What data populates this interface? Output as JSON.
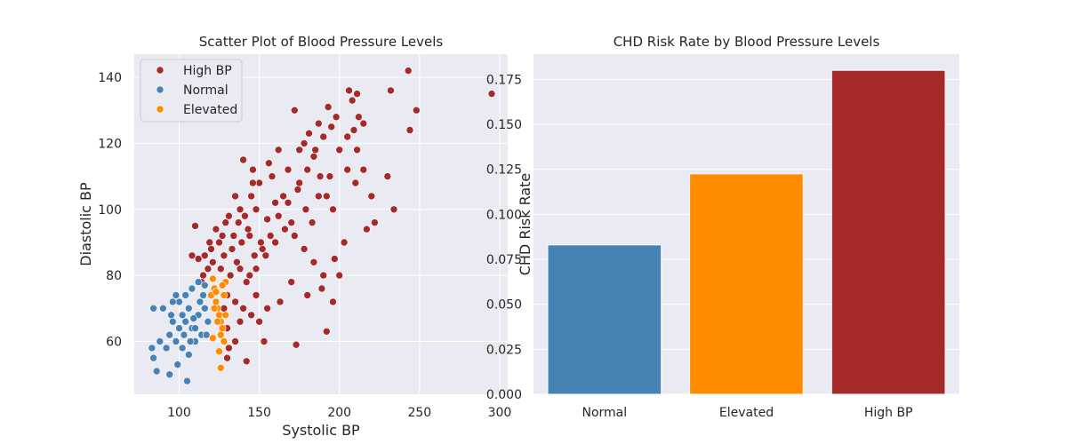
{
  "chart_data": [
    {
      "type": "scatter",
      "title": "Scatter Plot of Blood Pressure Levels",
      "xlabel": "Systolic BP",
      "ylabel": "Diastolic BP",
      "xlim": [
        72,
        305
      ],
      "ylim": [
        44,
        147
      ],
      "xticks": [
        100,
        150,
        200,
        250,
        300
      ],
      "yticks": [
        60,
        80,
        100,
        120,
        140
      ],
      "grid": true,
      "legend_position": "top-left",
      "series": [
        {
          "name": "High BP",
          "color": "#a52a2a",
          "points": [
            [
              143,
              94
            ],
            [
              148,
              100
            ],
            [
              155,
              97
            ],
            [
              139,
              90
            ],
            [
              145,
              104
            ],
            [
              152,
              88
            ],
            [
              160,
              102
            ],
            [
              136,
              84
            ],
            [
              132,
              80
            ],
            [
              128,
              86
            ],
            [
              125,
              90
            ],
            [
              121,
              84
            ],
            [
              118,
              82
            ],
            [
              116,
              86
            ],
            [
              120,
              88
            ],
            [
              134,
              92
            ],
            [
              150,
              108
            ],
            [
              158,
              110
            ],
            [
              165,
              104
            ],
            [
              170,
              96
            ],
            [
              175,
              108
            ],
            [
              180,
              112
            ],
            [
              185,
              118
            ],
            [
              190,
              122
            ],
            [
              195,
              125
            ],
            [
              200,
              118
            ],
            [
              205,
              112
            ],
            [
              210,
              108
            ],
            [
              172,
              130
            ],
            [
              178,
              120
            ],
            [
              184,
              116
            ],
            [
              188,
              110
            ],
            [
              192,
              104
            ],
            [
              196,
              100
            ],
            [
              168,
              112
            ],
            [
              162,
              118
            ],
            [
              156,
              114
            ],
            [
              146,
              108
            ],
            [
              141,
              98
            ],
            [
              137,
              96
            ],
            [
              130,
              74
            ],
            [
              135,
              72
            ],
            [
              140,
              70
            ],
            [
              145,
              68
            ],
            [
              150,
              66
            ],
            [
              130,
              64
            ],
            [
              138,
              66
            ],
            [
              142,
              78
            ],
            [
              148,
              82
            ],
            [
              154,
              86
            ],
            [
              160,
              90
            ],
            [
              166,
              94
            ],
            [
              172,
              92
            ],
            [
              178,
              88
            ],
            [
              184,
              84
            ],
            [
              190,
              80
            ],
            [
              206,
              136
            ],
            [
              208,
              133
            ],
            [
              211,
              135
            ],
            [
              212,
              128
            ],
            [
              215,
              126
            ],
            [
              209,
              124
            ],
            [
              243,
              142
            ],
            [
              248,
              130
            ],
            [
              232,
              136
            ],
            [
              230,
              110
            ],
            [
              234,
              100
            ],
            [
              244,
              124
            ],
            [
              295,
              135
            ],
            [
              220,
              104
            ],
            [
              222,
              96
            ],
            [
              217,
              94
            ],
            [
              215,
              112
            ],
            [
              211,
              118
            ],
            [
              205,
              122
            ],
            [
              198,
              128
            ],
            [
              193,
              131
            ],
            [
              187,
              126
            ],
            [
              181,
              123
            ],
            [
              175,
              118
            ],
            [
              140,
              115
            ],
            [
              146,
              112
            ],
            [
              130,
              55
            ],
            [
              126,
              52
            ],
            [
              131,
              58
            ],
            [
              135,
              60
            ],
            [
              142,
              54
            ],
            [
              153,
              60
            ],
            [
              173,
              59
            ],
            [
              192,
              63
            ],
            [
              196,
              72
            ],
            [
              200,
              80
            ],
            [
              197,
              85
            ],
            [
              203,
              90
            ],
            [
              189,
              76
            ],
            [
              180,
              74
            ],
            [
              170,
              78
            ],
            [
              163,
              72
            ],
            [
              155,
              70
            ],
            [
              148,
              74
            ],
            [
              144,
              80
            ],
            [
              138,
              82
            ],
            [
              133,
              88
            ],
            [
              127,
              92
            ],
            [
              123,
              94
            ],
            [
              119,
              90
            ],
            [
              115,
              80
            ],
            [
              112,
              85
            ],
            [
              110,
              95
            ],
            [
              108,
              86
            ],
            [
              114,
              78
            ],
            [
              128,
              70
            ],
            [
              157,
              92
            ],
            [
              162,
              98
            ],
            [
              168,
              102
            ],
            [
              174,
              106
            ],
            [
              179,
              100
            ],
            [
              183,
              96
            ],
            [
              187,
              104
            ],
            [
              194,
              110
            ],
            [
              151,
              90
            ],
            [
              147,
              86
            ],
            [
              144,
              92
            ],
            [
              138,
              100
            ],
            [
              135,
              104
            ],
            [
              131,
              98
            ],
            [
              129,
              96
            ],
            [
              126,
              82
            ]
          ]
        },
        {
          "name": "Normal",
          "color": "#4682b4",
          "points": [
            [
              84,
              70
            ],
            [
              90,
              70
            ],
            [
              95,
              68
            ],
            [
              100,
              72
            ],
            [
              104,
              74
            ],
            [
              108,
              76
            ],
            [
              112,
              78
            ],
            [
              116,
              77
            ],
            [
              94,
              62
            ],
            [
              98,
              60
            ],
            [
              102,
              58
            ],
            [
              106,
              56
            ],
            [
              110,
              60
            ],
            [
              114,
              62
            ],
            [
              118,
              66
            ],
            [
              96,
              66
            ],
            [
              100,
              64
            ],
            [
              104,
              66
            ],
            [
              108,
              64
            ],
            [
              112,
              68
            ],
            [
              116,
              70
            ],
            [
              92,
              58
            ],
            [
              88,
              60
            ],
            [
              83,
              58
            ],
            [
              84,
              55
            ],
            [
              86,
              51
            ],
            [
              94,
              50
            ],
            [
              99,
              53
            ],
            [
              105,
              48
            ],
            [
              110,
              64
            ],
            [
              113,
              72
            ],
            [
              106,
              70
            ],
            [
              102,
              68
            ],
            [
              98,
              74
            ],
            [
              96,
              72
            ],
            [
              109,
              67
            ],
            [
              115,
              74
            ],
            [
              117,
              62
            ],
            [
              103,
              62
            ],
            [
              107,
              60
            ]
          ]
        },
        {
          "name": "Elevated",
          "color": "#ff8c00",
          "points": [
            [
              121,
              79
            ],
            [
              122,
              76
            ],
            [
              123,
              72
            ],
            [
              124,
              70
            ],
            [
              125,
              68
            ],
            [
              126,
              66
            ],
            [
              127,
              64
            ],
            [
              128,
              74
            ],
            [
              129,
              78
            ],
            [
              120,
              74
            ],
            [
              122,
              70
            ],
            [
              124,
              66
            ],
            [
              126,
              62
            ],
            [
              128,
              60
            ],
            [
              125,
              57
            ],
            [
              121,
              61
            ],
            [
              126,
              52
            ],
            [
              123,
              75
            ],
            [
              127,
              77
            ],
            [
              129,
              68
            ]
          ]
        }
      ]
    },
    {
      "type": "bar",
      "title": "CHD Risk Rate by Blood Pressure Levels",
      "xlabel": "",
      "ylabel": "CHD Risk Rate",
      "categories": [
        "Normal",
        "Elevated",
        "High BP"
      ],
      "values": [
        0.083,
        0.1225,
        0.18
      ],
      "colors": [
        "#4682b4",
        "#ff8c00",
        "#a52a2a"
      ],
      "ylim": [
        0,
        0.189
      ],
      "yticks": [
        "0.000",
        "0.025",
        "0.050",
        "0.075",
        "0.100",
        "0.125",
        "0.150",
        "0.175"
      ],
      "grid": true
    }
  ]
}
